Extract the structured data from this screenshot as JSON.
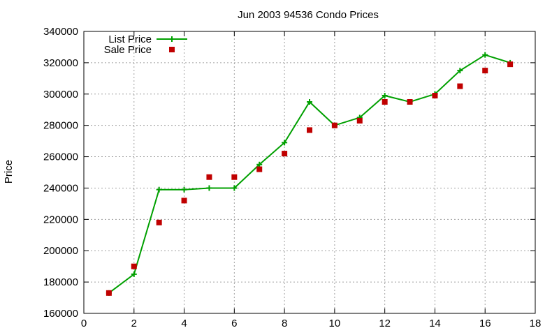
{
  "chart_data": {
    "type": "line",
    "title": "Jun 2003 94536 Condo Prices",
    "xlabel": "",
    "ylabel": "Price",
    "xlim": [
      0,
      18
    ],
    "ylim": [
      160000,
      340000
    ],
    "xticks": [
      0,
      2,
      4,
      6,
      8,
      10,
      12,
      14,
      16,
      18
    ],
    "yticks": [
      160000,
      180000,
      200000,
      220000,
      240000,
      260000,
      280000,
      300000,
      320000,
      340000
    ],
    "grid": true,
    "legend_position": "top-left",
    "series": [
      {
        "name": "List Price",
        "style": "line+cross",
        "color": "#00a000",
        "x": [
          1,
          2,
          3,
          4,
          5,
          6,
          7,
          8,
          9,
          10,
          11,
          12,
          13,
          14,
          15,
          16,
          17
        ],
        "y": [
          173000,
          185000,
          239000,
          239000,
          240000,
          240000,
          255000,
          269000,
          295000,
          280000,
          285000,
          299000,
          295000,
          300000,
          315000,
          325000,
          320000
        ]
      },
      {
        "name": "Sale Price",
        "style": "square-points",
        "color": "#c00000",
        "x": [
          1,
          2,
          3,
          4,
          5,
          6,
          7,
          8,
          9,
          10,
          11,
          12,
          13,
          14,
          15,
          16,
          17
        ],
        "y": [
          173000,
          190000,
          218000,
          232000,
          247000,
          247000,
          252000,
          262000,
          277000,
          280000,
          283000,
          295000,
          295000,
          299000,
          305000,
          315000,
          319000
        ]
      }
    ]
  }
}
